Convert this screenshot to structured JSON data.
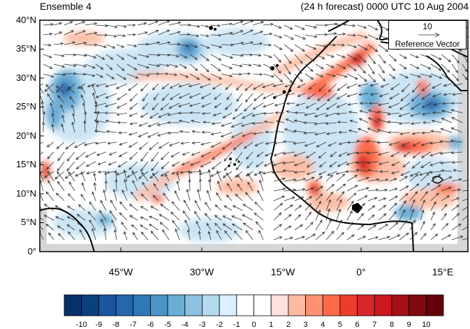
{
  "title_left": "Ensemble 4",
  "title_right": "(24 h forecast) 0000 UTC 10 Aug 2004",
  "lat_labels": [
    "40°N",
    "35°N",
    "30°N",
    "25°N",
    "20°N",
    "15°N",
    "10°N",
    "5°N",
    "0°"
  ],
  "lon_labels": [
    "45°W",
    "30°W",
    "15°W",
    "0°",
    "15°E"
  ],
  "reference_vector": {
    "value": "10",
    "label": "Reference Vector"
  },
  "colorbar": {
    "labels": [
      "-10",
      "-9",
      "-8",
      "-7",
      "-6",
      "-5",
      "-4",
      "-3",
      "-2",
      "-1",
      "0",
      "1",
      "2",
      "3",
      "4",
      "5",
      "6",
      "7",
      "8",
      "9",
      "10"
    ],
    "colors": [
      "#08306b",
      "#0b3f80",
      "#1a56a0",
      "#2566ad",
      "#2f78b8",
      "#4b94c6",
      "#6aaed6",
      "#8cc2e0",
      "#b3daee",
      "#dcefff",
      "#ffffff",
      "#ffffff",
      "#fde0e0",
      "#fcbba1",
      "#fc9272",
      "#fb6a4a",
      "#ef3b2c",
      "#d7262a",
      "#cb181d",
      "#a50f15",
      "#7f0a0f",
      "#67000d"
    ]
  },
  "colors": {
    "land_mask": "#d6d6d6",
    "coastline": "#000000",
    "vector": "#333333"
  }
}
